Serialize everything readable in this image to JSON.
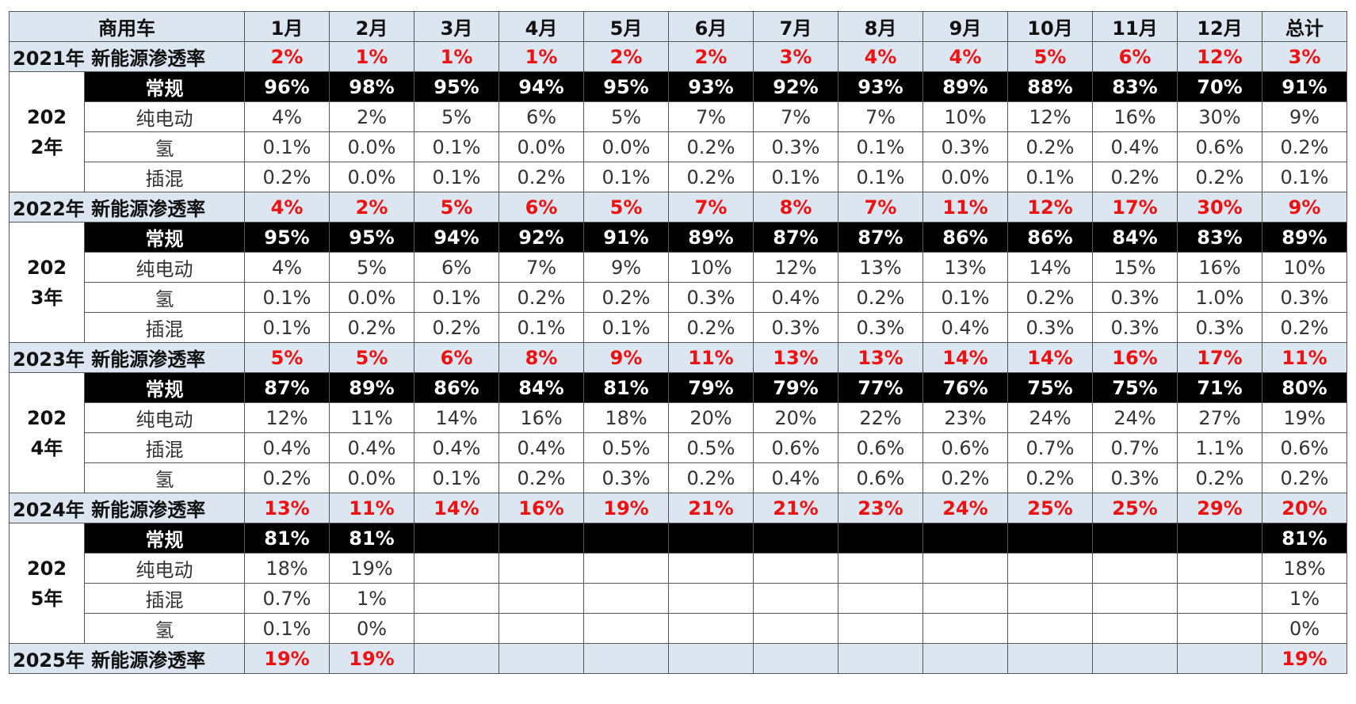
{
  "table": {
    "header": [
      "商用车",
      "1月",
      "2月",
      "3月",
      "4月",
      "5月",
      "6月",
      "7月",
      "8月",
      "9月",
      "10月",
      "11月",
      "12月",
      "总计"
    ],
    "sections": [
      {
        "rate_label": "2021年 新能源渗透率",
        "rate": [
          "2%",
          "1%",
          "1%",
          "1%",
          "2%",
          "2%",
          "3%",
          "4%",
          "4%",
          "5%",
          "6%",
          "12%",
          "3%"
        ]
      },
      {
        "year": "2022年",
        "rows": [
          {
            "label": "常规",
            "values": [
              "96%",
              "98%",
              "95%",
              "94%",
              "95%",
              "93%",
              "92%",
              "93%",
              "89%",
              "88%",
              "83%",
              "70%",
              "91%"
            ]
          },
          {
            "label": "纯电动",
            "values": [
              "4%",
              "2%",
              "5%",
              "6%",
              "5%",
              "7%",
              "7%",
              "7%",
              "10%",
              "12%",
              "16%",
              "30%",
              "9%"
            ]
          },
          {
            "label": "氢",
            "values": [
              "0.1%",
              "0.0%",
              "0.1%",
              "0.0%",
              "0.0%",
              "0.2%",
              "0.3%",
              "0.1%",
              "0.3%",
              "0.2%",
              "0.4%",
              "0.6%",
              "0.2%"
            ]
          },
          {
            "label": "插混",
            "values": [
              "0.2%",
              "0.0%",
              "0.1%",
              "0.2%",
              "0.1%",
              "0.2%",
              "0.1%",
              "0.1%",
              "0.0%",
              "0.1%",
              "0.2%",
              "0.2%",
              "0.1%"
            ]
          }
        ],
        "rate_label": "2022年 新能源渗透率",
        "rate": [
          "4%",
          "2%",
          "5%",
          "6%",
          "5%",
          "7%",
          "8%",
          "7%",
          "11%",
          "12%",
          "17%",
          "30%",
          "9%"
        ]
      },
      {
        "year": "2023年",
        "rows": [
          {
            "label": "常规",
            "values": [
              "95%",
              "95%",
              "94%",
              "92%",
              "91%",
              "89%",
              "87%",
              "87%",
              "86%",
              "86%",
              "84%",
              "83%",
              "89%"
            ]
          },
          {
            "label": "纯电动",
            "values": [
              "4%",
              "5%",
              "6%",
              "7%",
              "9%",
              "10%",
              "12%",
              "13%",
              "13%",
              "14%",
              "15%",
              "16%",
              "10%"
            ]
          },
          {
            "label": "氢",
            "values": [
              "0.1%",
              "0.0%",
              "0.1%",
              "0.2%",
              "0.2%",
              "0.3%",
              "0.4%",
              "0.2%",
              "0.1%",
              "0.2%",
              "0.3%",
              "1.0%",
              "0.3%"
            ]
          },
          {
            "label": "插混",
            "values": [
              "0.1%",
              "0.2%",
              "0.2%",
              "0.1%",
              "0.1%",
              "0.2%",
              "0.3%",
              "0.3%",
              "0.4%",
              "0.3%",
              "0.3%",
              "0.3%",
              "0.2%"
            ]
          }
        ],
        "rate_label": "2023年 新能源渗透率",
        "rate": [
          "5%",
          "5%",
          "6%",
          "8%",
          "9%",
          "11%",
          "13%",
          "13%",
          "14%",
          "14%",
          "16%",
          "17%",
          "11%"
        ]
      },
      {
        "year": "2024年",
        "rows": [
          {
            "label": "常规",
            "values": [
              "87%",
              "89%",
              "86%",
              "84%",
              "81%",
              "79%",
              "79%",
              "77%",
              "76%",
              "75%",
              "75%",
              "71%",
              "80%"
            ]
          },
          {
            "label": "纯电动",
            "values": [
              "12%",
              "11%",
              "14%",
              "16%",
              "18%",
              "20%",
              "20%",
              "22%",
              "23%",
              "24%",
              "24%",
              "27%",
              "19%"
            ]
          },
          {
            "label": "插混",
            "values": [
              "0.4%",
              "0.4%",
              "0.4%",
              "0.4%",
              "0.5%",
              "0.5%",
              "0.6%",
              "0.6%",
              "0.6%",
              "0.7%",
              "0.7%",
              "1.1%",
              "0.6%"
            ]
          },
          {
            "label": "氢",
            "values": [
              "0.2%",
              "0.0%",
              "0.1%",
              "0.2%",
              "0.3%",
              "0.2%",
              "0.4%",
              "0.6%",
              "0.2%",
              "0.2%",
              "0.3%",
              "0.2%",
              "0.2%"
            ]
          }
        ],
        "rate_label": "2024年 新能源渗透率",
        "rate": [
          "13%",
          "11%",
          "14%",
          "16%",
          "19%",
          "21%",
          "21%",
          "23%",
          "24%",
          "25%",
          "25%",
          "29%",
          "20%"
        ]
      },
      {
        "year": "2025年",
        "rows": [
          {
            "label": "常规",
            "values": [
              "81%",
              "81%",
              null,
              null,
              null,
              null,
              null,
              null,
              null,
              null,
              null,
              null,
              "81%"
            ]
          },
          {
            "label": "纯电动",
            "values": [
              "18%",
              "19%",
              null,
              null,
              null,
              null,
              null,
              null,
              null,
              null,
              null,
              null,
              "18%"
            ]
          },
          {
            "label": "插混",
            "values": [
              "0.7%",
              "1%",
              null,
              null,
              null,
              null,
              null,
              null,
              null,
              null,
              null,
              null,
              "1%"
            ]
          },
          {
            "label": "氢",
            "values": [
              "0.1%",
              "0%",
              null,
              null,
              null,
              null,
              null,
              null,
              null,
              null,
              null,
              null,
              "0%"
            ]
          }
        ],
        "rate_label": "2025年 新能源渗透率",
        "rate": [
          "19%",
          "19%",
          null,
          null,
          null,
          null,
          null,
          null,
          null,
          null,
          null,
          null,
          "19%"
        ]
      }
    ]
  }
}
